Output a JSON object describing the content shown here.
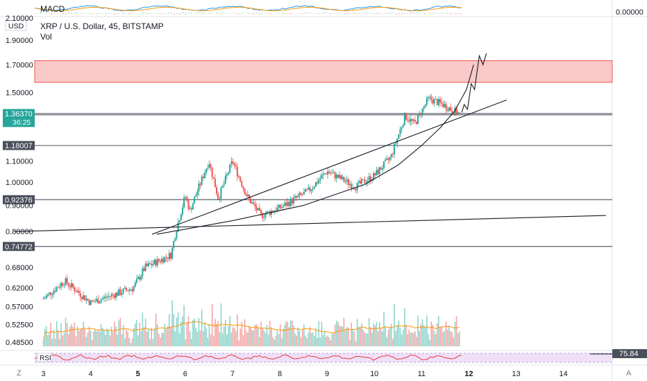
{
  "header": {
    "macd_label": "MACD",
    "macd_value": "0.00000",
    "symbol": "XRP / U.S. Dollar, 45, BITSTAMP",
    "vol_label": "Vol",
    "currency": "USD",
    "rsi_label": "RSI",
    "rsi_value": "75.84",
    "bottom_left_icon": "Z",
    "bottom_right_icon": "A"
  },
  "colors": {
    "up": "#26a69a",
    "down": "#ef5350",
    "zone_fill": "#f8c9c6",
    "zone_border": "#ef5350",
    "price_tag": "#26a69a",
    "level_line": "#131722",
    "ma": "#ff9800",
    "rsi_fill": "#efe0f7",
    "rsi_line": "#e53935",
    "macd_line": "#2196f3",
    "signal_line": "#ff9800"
  },
  "chart_data": {
    "type": "candlestick",
    "symbol": "XRP / U.S. Dollar, 45, BITSTAMP",
    "y_axis": {
      "scale": "log",
      "ticks": [
        "2.10000",
        "1.90000",
        "1.70000",
        "1.50000",
        "1.36370",
        "1.18007",
        "1.10000",
        "1.00000",
        "0.92376",
        "0.90000",
        "0.80000",
        "0.74772",
        "0.68000",
        "0.62000",
        "0.57000",
        "0.52500",
        "0.48500"
      ],
      "ylim": [
        0.47,
        2.12
      ]
    },
    "x_axis": {
      "ticks": [
        "3",
        "4",
        "5",
        "6",
        "7",
        "8",
        "9",
        "10",
        "11",
        "12",
        "13",
        "14"
      ]
    },
    "current_price": {
      "value": "1.36370",
      "countdown": "36:25"
    },
    "levels": [
      {
        "label": "1.73162",
        "value": 1.73162,
        "style": "zone_top"
      },
      {
        "label": "1.36370",
        "value": 1.3637,
        "style": "current"
      },
      {
        "label": "1.35552",
        "value": 1.35552,
        "style": "line"
      },
      {
        "label": "1.18007",
        "value": 1.18007,
        "style": "line"
      },
      {
        "label": "0.92376",
        "value": 0.92376,
        "style": "line"
      },
      {
        "label": "0.74772",
        "value": 0.74772,
        "style": "line"
      }
    ],
    "resistance_zone": {
      "top": 1.73162,
      "bottom": 1.57
    },
    "trend_lines": [
      {
        "from": {
          "x": 2.4,
          "y": 0.8
        },
        "to": {
          "x": 14.9,
          "y": 0.86
        }
      },
      {
        "from": {
          "x": 5.3,
          "y": 0.79
        },
        "to": {
          "x": 12.8,
          "y": 1.45
        }
      }
    ],
    "curve": {
      "points": [
        [
          5.4,
          0.79
        ],
        [
          7.0,
          0.84
        ],
        [
          8.5,
          0.9
        ],
        [
          9.8,
          0.99
        ],
        [
          10.5,
          1.08
        ],
        [
          11.0,
          1.18
        ],
        [
          11.4,
          1.28
        ],
        [
          11.7,
          1.38
        ],
        [
          11.95,
          1.52
        ],
        [
          12.1,
          1.7
        ]
      ]
    },
    "projection": {
      "points": [
        [
          11.85,
          1.37
        ],
        [
          11.9,
          1.42
        ],
        [
          11.97,
          1.39
        ],
        [
          12.05,
          1.56
        ],
        [
          12.12,
          1.52
        ],
        [
          12.22,
          1.77
        ],
        [
          12.3,
          1.7
        ],
        [
          12.37,
          1.79
        ]
      ]
    },
    "key_points": [
      {
        "x": 3.0,
        "y": 0.59
      },
      {
        "x": 3.45,
        "y": 0.64
      },
      {
        "x": 4.0,
        "y": 0.58
      },
      {
        "x": 4.9,
        "y": 0.62
      },
      {
        "x": 5.15,
        "y": 0.68
      },
      {
        "x": 5.7,
        "y": 0.72
      },
      {
        "x": 5.8,
        "y": 0.8
      },
      {
        "x": 6.0,
        "y": 0.94
      },
      {
        "x": 6.1,
        "y": 0.88
      },
      {
        "x": 6.5,
        "y": 1.1
      },
      {
        "x": 6.7,
        "y": 0.93
      },
      {
        "x": 7.0,
        "y": 1.1
      },
      {
        "x": 7.3,
        "y": 0.94
      },
      {
        "x": 7.6,
        "y": 0.86
      },
      {
        "x": 8.0,
        "y": 0.89
      },
      {
        "x": 8.6,
        "y": 0.96
      },
      {
        "x": 9.0,
        "y": 1.05
      },
      {
        "x": 9.6,
        "y": 0.98
      },
      {
        "x": 10.0,
        "y": 1.03
      },
      {
        "x": 10.35,
        "y": 1.12
      },
      {
        "x": 10.65,
        "y": 1.35
      },
      {
        "x": 10.85,
        "y": 1.3
      },
      {
        "x": 11.15,
        "y": 1.46
      },
      {
        "x": 11.45,
        "y": 1.42
      },
      {
        "x": 11.8,
        "y": 1.36
      }
    ],
    "rsi_value": 75.84,
    "macd_value": 0.0
  }
}
